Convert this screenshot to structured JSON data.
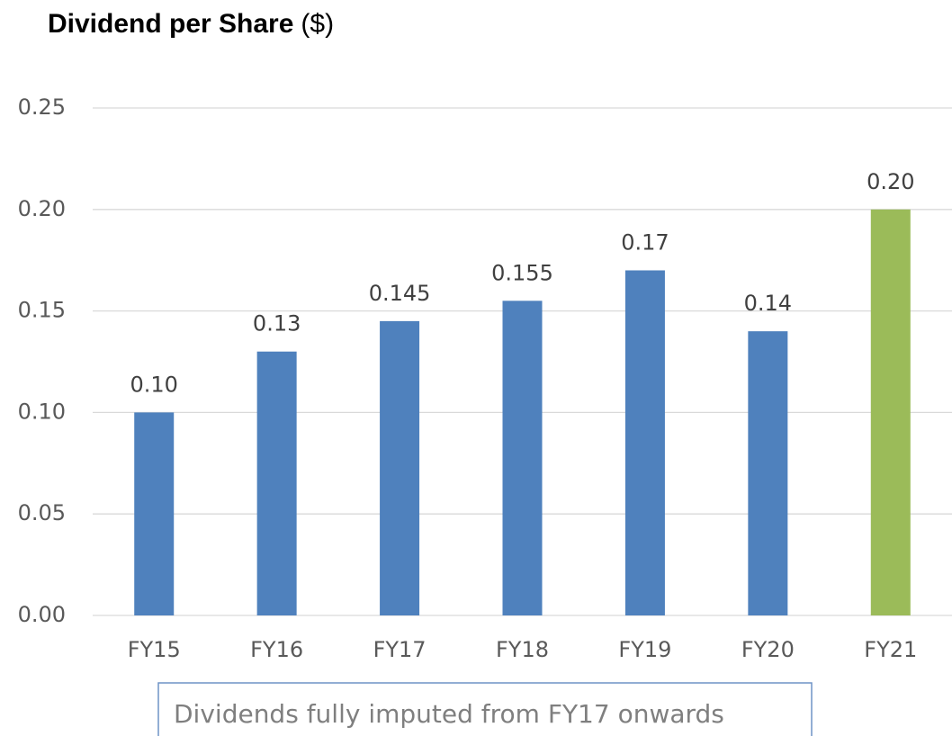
{
  "chart_data": {
    "type": "bar",
    "title": "Dividend per Share",
    "unit": "($)",
    "categories": [
      "FY15",
      "FY16",
      "FY17",
      "FY18",
      "FY19",
      "FY20",
      "FY21"
    ],
    "values": [
      0.1,
      0.13,
      0.145,
      0.155,
      0.17,
      0.14,
      0.2
    ],
    "value_labels": [
      "0.10",
      "0.13",
      "0.145",
      "0.155",
      "0.17",
      "0.14",
      "0.20"
    ],
    "colors": [
      "#4f81bd",
      "#4f81bd",
      "#4f81bd",
      "#4f81bd",
      "#4f81bd",
      "#4f81bd",
      "#9bbb59"
    ],
    "ylim": [
      0,
      0.25
    ],
    "yticks": [
      {
        "value": 0,
        "label": "0.00"
      },
      {
        "value": 0.05,
        "label": "0.05"
      },
      {
        "value": 0.1,
        "label": "0.10"
      },
      {
        "value": 0.15,
        "label": "0.15"
      },
      {
        "value": 0.2,
        "label": "0.20"
      },
      {
        "value": 0.25,
        "label": "0.25"
      }
    ],
    "grid": true,
    "annotation": "Dividends fully imputed from FY17 onwards"
  }
}
